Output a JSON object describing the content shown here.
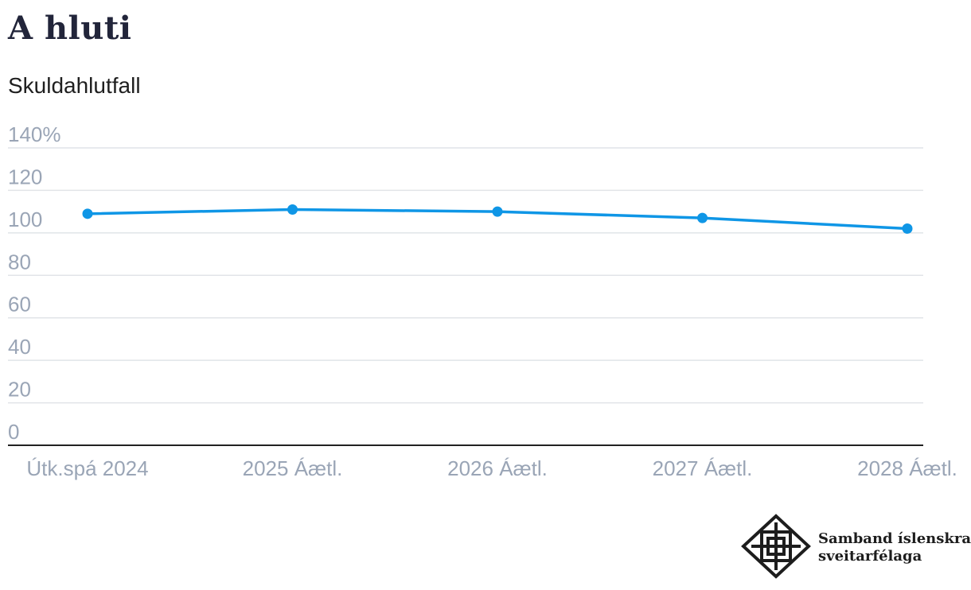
{
  "header": {
    "title": "A hluti",
    "subtitle": "Skuldahlutfall"
  },
  "logo": {
    "line1": "Samband íslenskra",
    "line2": "sveitarfélaga",
    "icon": "union-seal-icon"
  },
  "colors": {
    "series": "#0f96e6",
    "tick_text": "#9aa5b6",
    "grid": "#e1e4e8",
    "axis": "#222222"
  },
  "chart_data": {
    "type": "line",
    "title": "Skuldahlutfall",
    "xlabel": "",
    "ylabel": "",
    "categories": [
      "Útk.spá 2024",
      "2025 Áætl.",
      "2026 Áætl.",
      "2027 Áætl.",
      "2028 Áætl."
    ],
    "series": [
      {
        "values": [
          109,
          111,
          110,
          107,
          102
        ]
      }
    ],
    "ylim": [
      0,
      140
    ],
    "yticks": [
      0,
      20,
      40,
      60,
      80,
      100,
      120,
      140
    ],
    "ytick_labels": [
      "0",
      "20",
      "40",
      "60",
      "80",
      "100",
      "120",
      "140%"
    ],
    "grid": true,
    "legend": "none"
  }
}
